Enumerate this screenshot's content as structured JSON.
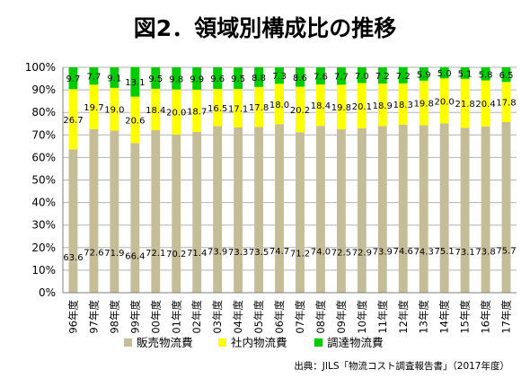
{
  "chart_data": {
    "type": "bar",
    "stacked": true,
    "title": "図2．領域別構成比の推移",
    "categories": [
      "96年度",
      "97年度",
      "98年度",
      "99年度",
      "00年度",
      "01年度",
      "02年度",
      "03年度",
      "04年度",
      "05年度",
      "06年度",
      "07年度",
      "08年度",
      "09年度",
      "10年度",
      "11年度",
      "12年度",
      "13年度",
      "14年度",
      "15年度",
      "16年度",
      "17年度"
    ],
    "series": [
      {
        "name": "販売物流費",
        "color": "#c4bd97",
        "values": [
          63.6,
          72.6,
          71.9,
          66.4,
          72.1,
          70.2,
          71.4,
          73.9,
          73.3,
          73.5,
          74.7,
          71.2,
          74.0,
          72.5,
          72.9,
          73.9,
          74.6,
          74.3,
          75.1,
          73.1,
          73.8,
          75.7
        ]
      },
      {
        "name": "社内物流費",
        "color": "#ffff00",
        "values": [
          26.7,
          19.7,
          19.0,
          20.6,
          18.4,
          20.0,
          18.7,
          16.5,
          17.1,
          17.8,
          18.0,
          20.2,
          18.4,
          19.8,
          20.1,
          18.9,
          18.3,
          19.8,
          20.0,
          21.8,
          20.4,
          17.8
        ]
      },
      {
        "name": "調達物流費",
        "color": "#00cc00",
        "values": [
          9.7,
          7.7,
          9.1,
          13.1,
          9.5,
          9.8,
          9.9,
          9.6,
          9.5,
          8.8,
          7.3,
          8.6,
          7.6,
          7.7,
          7.0,
          7.2,
          7.2,
          5.9,
          5.0,
          5.1,
          5.8,
          6.5
        ]
      }
    ],
    "yticks": [
      "0%",
      "10%",
      "20%",
      "30%",
      "40%",
      "50%",
      "60%",
      "70%",
      "80%",
      "90%",
      "100%"
    ],
    "ylim": [
      0,
      100
    ],
    "grid": true,
    "legend": "bottom-center",
    "source": "出典：JILS「物流コスト調査報告書」（2017年度）"
  }
}
